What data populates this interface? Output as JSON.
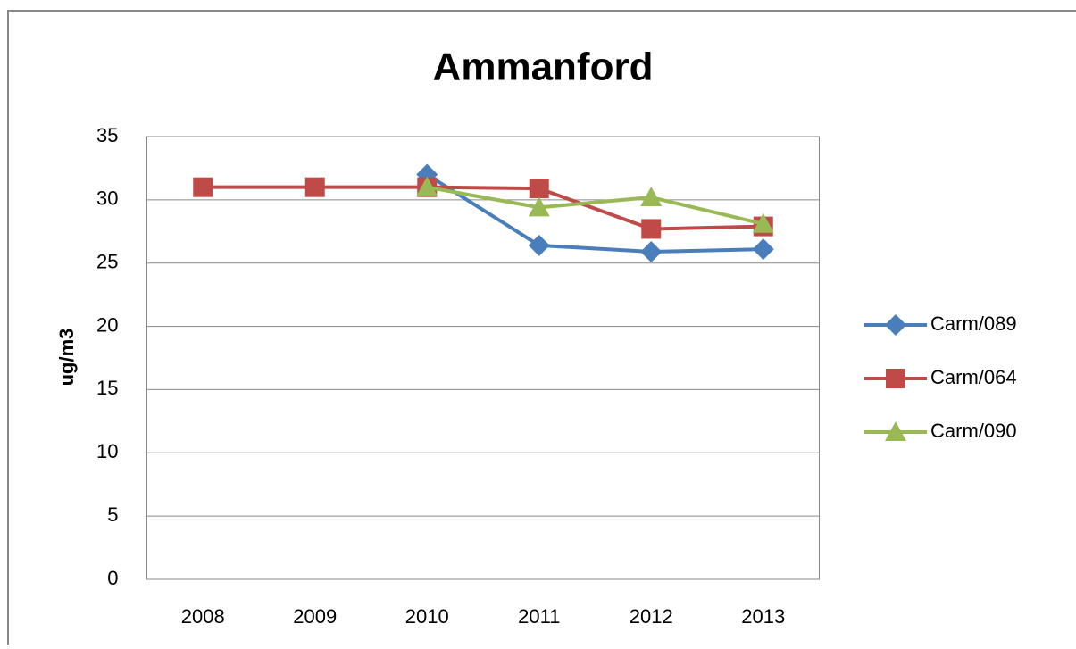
{
  "chart_data": {
    "type": "line",
    "title": "Ammanford",
    "y_label": "ug/m3",
    "categories": [
      "2008",
      "2009",
      "2010",
      "2011",
      "2012",
      "2013"
    ],
    "series": [
      {
        "name": "Carm/089",
        "color": "#4a7ebb",
        "marker": "diamond",
        "values": [
          null,
          null,
          32,
          26.4,
          25.9,
          26.1
        ]
      },
      {
        "name": "Carm/064",
        "color": "#be4b48",
        "marker": "square",
        "values": [
          31,
          31,
          31,
          30.9,
          27.7,
          27.9
        ]
      },
      {
        "name": "Carm/090",
        "color": "#98b954",
        "marker": "triangle",
        "values": [
          null,
          null,
          31,
          29.4,
          30.2,
          28.1
        ]
      }
    ],
    "ylim": [
      0,
      35
    ],
    "yticks": [
      0,
      5,
      10,
      15,
      20,
      25,
      30,
      35
    ],
    "grid": true,
    "legend": "right"
  }
}
